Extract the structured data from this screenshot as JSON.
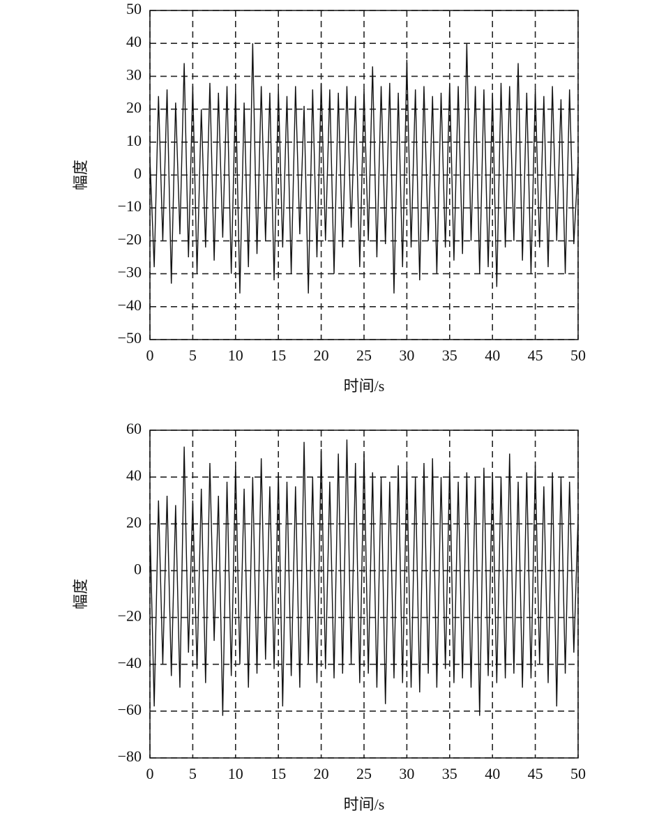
{
  "chart_data": [
    {
      "type": "line",
      "xlabel": "时间/s",
      "ylabel": "幅度",
      "x": [
        0,
        0.5,
        1,
        1.5,
        2,
        2.5,
        3,
        3.5,
        4,
        4.5,
        5,
        5.5,
        6,
        6.5,
        7,
        7.5,
        8,
        8.5,
        9,
        9.5,
        10,
        10.5,
        11,
        11.5,
        12,
        12.5,
        13,
        13.5,
        14,
        14.5,
        15,
        15.5,
        16,
        16.5,
        17,
        17.5,
        18,
        18.5,
        19,
        19.5,
        20,
        20.5,
        21,
        21.5,
        22,
        22.5,
        23,
        23.5,
        24,
        24.5,
        25,
        25.5,
        26,
        26.5,
        27,
        27.5,
        28,
        28.5,
        29,
        29.5,
        30,
        30.5,
        31,
        31.5,
        32,
        32.5,
        33,
        33.5,
        34,
        34.5,
        35,
        35.5,
        36,
        36.5,
        37,
        37.5,
        38,
        38.5,
        39,
        39.5,
        40,
        40.5,
        41,
        41.5,
        42,
        42.5,
        43,
        43.5,
        44,
        44.5,
        45,
        45.5,
        46,
        46.5,
        47,
        47.5,
        48,
        48.5,
        49,
        49.5,
        50
      ],
      "series": [
        {
          "color": "#111111",
          "values": [
            5,
            -28,
            24,
            -20,
            26,
            -33,
            22,
            -18,
            34,
            -25,
            27,
            -30,
            20,
            -22,
            28,
            -26,
            25,
            -19,
            27,
            -30,
            26,
            -36,
            22,
            -28,
            40,
            -24,
            27,
            -20,
            25,
            -32,
            26,
            -22,
            24,
            -30,
            27,
            -18,
            21,
            -36,
            26,
            -25,
            28,
            -20,
            26,
            -30,
            25,
            -22,
            27,
            -16,
            24,
            -28,
            26,
            -20,
            33,
            -25,
            27,
            -21,
            28,
            -36,
            25,
            -28,
            35,
            -22,
            26,
            -32,
            27,
            -20,
            24,
            -30,
            25,
            -22,
            28,
            -26,
            27,
            -24,
            40,
            -20,
            27,
            -30,
            26,
            -28,
            25,
            -34,
            28,
            -22,
            27,
            -20,
            34,
            -26,
            25,
            -30,
            26,
            -22,
            24,
            -28,
            27,
            -20,
            23,
            -30,
            26,
            -21,
            4
          ]
        }
      ],
      "xlim": [
        0,
        50
      ],
      "ylim": [
        -50,
        50
      ],
      "xticks": [
        0,
        5,
        10,
        15,
        20,
        25,
        30,
        35,
        40,
        45,
        50
      ],
      "yticks": [
        {
          "value": -50,
          "label": "−50"
        },
        {
          "value": -40,
          "label": "−40"
        },
        {
          "value": -30,
          "label": "−30"
        },
        {
          "value": -20,
          "label": "−20"
        },
        {
          "value": -10,
          "label": "−10"
        },
        0,
        10,
        20,
        30,
        40,
        50
      ],
      "grid": true
    },
    {
      "type": "line",
      "xlabel": "时间/s",
      "ylabel": "幅度",
      "x": [
        0,
        0.5,
        1,
        1.5,
        2,
        2.5,
        3,
        3.5,
        4,
        4.5,
        5,
        5.5,
        6,
        6.5,
        7,
        7.5,
        8,
        8.5,
        9,
        9.5,
        10,
        10.5,
        11,
        11.5,
        12,
        12.5,
        13,
        13.5,
        14,
        14.5,
        15,
        15.5,
        16,
        16.5,
        17,
        17.5,
        18,
        18.5,
        19,
        19.5,
        20,
        20.5,
        21,
        21.5,
        22,
        22.5,
        23,
        23.5,
        24,
        24.5,
        25,
        25.5,
        26,
        26.5,
        27,
        27.5,
        28,
        28.5,
        29,
        29.5,
        30,
        30.5,
        31,
        31.5,
        32,
        32.5,
        33,
        33.5,
        34,
        34.5,
        35,
        35.5,
        36,
        36.5,
        37,
        37.5,
        38,
        38.5,
        39,
        39.5,
        40,
        40.5,
        41,
        41.5,
        42,
        42.5,
        43,
        43.5,
        44,
        44.5,
        45,
        45.5,
        46,
        46.5,
        47,
        47.5,
        48,
        48.5,
        49,
        49.5,
        50
      ],
      "series": [
        {
          "color": "#111111",
          "values": [
            20,
            -58,
            30,
            -40,
            32,
            -45,
            28,
            -50,
            53,
            -35,
            30,
            -42,
            35,
            -48,
            46,
            -30,
            32,
            -62,
            38,
            -45,
            45,
            -40,
            35,
            -50,
            40,
            -44,
            48,
            -38,
            36,
            -42,
            42,
            -58,
            38,
            -45,
            36,
            -50,
            55,
            -40,
            40,
            -48,
            52,
            -42,
            38,
            -46,
            50,
            -44,
            56,
            -40,
            46,
            -48,
            50,
            -44,
            42,
            -50,
            40,
            -57,
            38,
            -46,
            45,
            -48,
            44,
            -50,
            40,
            -52,
            46,
            -44,
            48,
            -50,
            40,
            -42,
            45,
            -48,
            38,
            -46,
            42,
            -50,
            40,
            -62,
            44,
            -45,
            42,
            -48,
            40,
            -46,
            50,
            -44,
            38,
            -50,
            42,
            -46,
            45,
            -40,
            36,
            -48,
            42,
            -58,
            40,
            -44,
            38,
            -35,
            23
          ]
        }
      ],
      "xlim": [
        0,
        50
      ],
      "ylim": [
        -80,
        60
      ],
      "xticks": [
        0,
        5,
        10,
        15,
        20,
        25,
        30,
        35,
        40,
        45,
        50
      ],
      "yticks": [
        {
          "value": -80,
          "label": "−80"
        },
        {
          "value": -60,
          "label": "−60"
        },
        {
          "value": -40,
          "label": "−40"
        },
        {
          "value": -20,
          "label": "−20"
        },
        0,
        20,
        40,
        60
      ],
      "grid": true
    }
  ]
}
